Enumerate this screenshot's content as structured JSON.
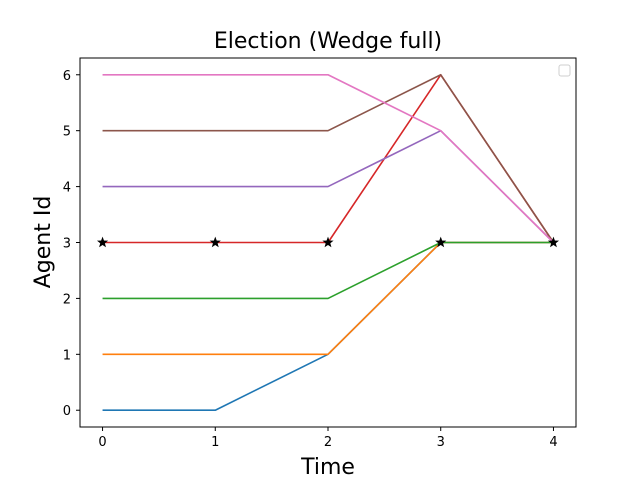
{
  "chart_data": {
    "type": "line",
    "title": "Election (Wedge full)",
    "xlabel": "Time",
    "ylabel": "Agent Id",
    "x": [
      0,
      1,
      2,
      3,
      4
    ],
    "xlim": [
      -0.2,
      4.2
    ],
    "ylim": [
      -0.3,
      6.3
    ],
    "xticks": [
      0,
      1,
      2,
      3,
      4
    ],
    "yticks": [
      0,
      1,
      2,
      3,
      4,
      5,
      6
    ],
    "grid": false,
    "legend": {
      "placement": "top-right",
      "entries": []
    },
    "series": [
      {
        "color": "#1f77b4",
        "values": [
          0,
          0,
          1,
          3,
          3
        ]
      },
      {
        "color": "#ff7f0e",
        "values": [
          1,
          1,
          1,
          3,
          3
        ]
      },
      {
        "color": "#2ca02c",
        "values": [
          2,
          2,
          2,
          3,
          3
        ]
      },
      {
        "color": "#d62728",
        "values": [
          3,
          3,
          3,
          6,
          3
        ]
      },
      {
        "color": "#9467bd",
        "values": [
          4,
          4,
          4,
          5,
          3
        ]
      },
      {
        "color": "#8c564b",
        "values": [
          5,
          5,
          5,
          6,
          3
        ]
      },
      {
        "color": "#e377c2",
        "values": [
          6,
          6,
          6,
          5,
          3
        ]
      }
    ],
    "markers": {
      "symbol": "star",
      "color": "#000000",
      "points": [
        {
          "x": 0,
          "y": 3
        },
        {
          "x": 1,
          "y": 3
        },
        {
          "x": 2,
          "y": 3
        },
        {
          "x": 3,
          "y": 3
        },
        {
          "x": 4,
          "y": 3
        }
      ]
    }
  }
}
